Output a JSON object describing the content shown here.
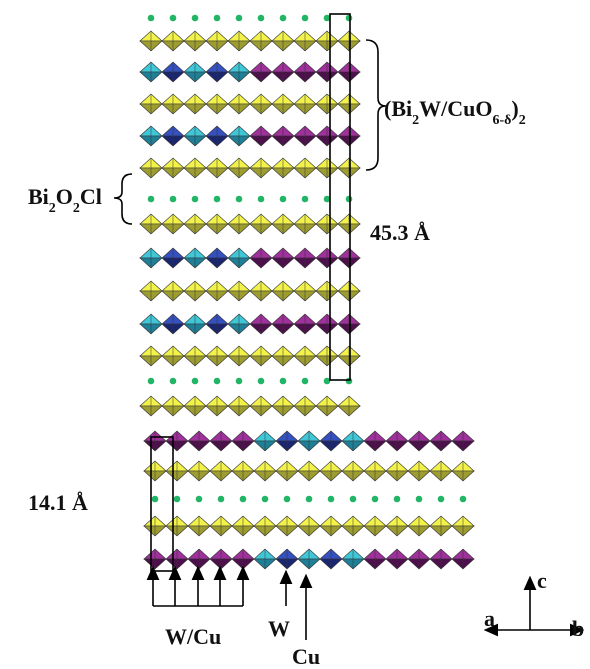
{
  "labels": {
    "block_formula": [
      "(Bi",
      "2",
      "W/CuO",
      "6-δ",
      ")",
      "2"
    ],
    "spacer_formula": [
      "Bi",
      "2",
      "O",
      "2",
      "Cl"
    ],
    "long_axis": "45.3 Å",
    "short_axis": "14.1 Å",
    "w_cu": "W/Cu",
    "w": "W",
    "cu": "Cu",
    "axis_a": "a",
    "axis_b": "b",
    "axis_c": "c"
  }
}
